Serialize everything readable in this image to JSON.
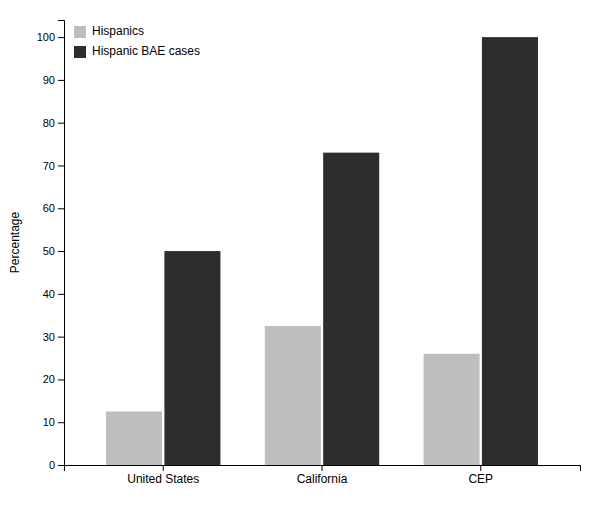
{
  "chart_data": {
    "type": "bar",
    "categories": [
      "United States",
      "California",
      "CEP"
    ],
    "series": [
      {
        "name": "Hispanics",
        "color": "#bebebe",
        "values": [
          12.5,
          32.5,
          26.0
        ]
      },
      {
        "name": "Hispanic BAE cases",
        "color": "#2d2d2d",
        "values": [
          50.0,
          73.0,
          100.0
        ]
      }
    ],
    "ylabel": "Percentage",
    "ylim": [
      0,
      104
    ],
    "yticks": [
      0,
      10,
      20,
      30,
      40,
      50,
      60,
      70,
      80,
      90,
      100
    ],
    "legend": "upper-left",
    "grid": false
  }
}
